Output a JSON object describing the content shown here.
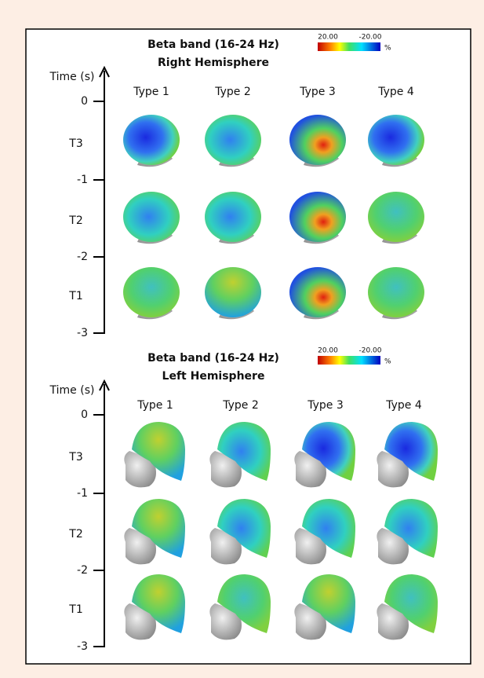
{
  "panels": [
    {
      "title": "Beta band (16-24 Hz)",
      "subtitle": "Right Hemisphere",
      "colorbar": {
        "max_label": "20.00",
        "min_label": "-20.00",
        "unit": "%"
      },
      "axis_label": "Time (s)",
      "ticks": [
        "0",
        "-1",
        "-2",
        "-3"
      ],
      "periods": [
        "T3",
        "T2",
        "T1"
      ],
      "types": [
        "Type 1",
        "Type 2",
        "Type 3",
        "Type 4"
      ]
    },
    {
      "title": "Beta band (16-24 Hz)",
      "subtitle": "Left Hemisphere",
      "colorbar": {
        "max_label": "20.00",
        "min_label": "-20.00",
        "unit": "%"
      },
      "axis_label": "Time (s)",
      "ticks": [
        "0",
        "-1",
        "-2",
        "-3"
      ],
      "periods": [
        "T3",
        "T2",
        "T1"
      ],
      "types": [
        "Type 1",
        "Type 2",
        "Type 3",
        "Type 4"
      ]
    }
  ]
}
